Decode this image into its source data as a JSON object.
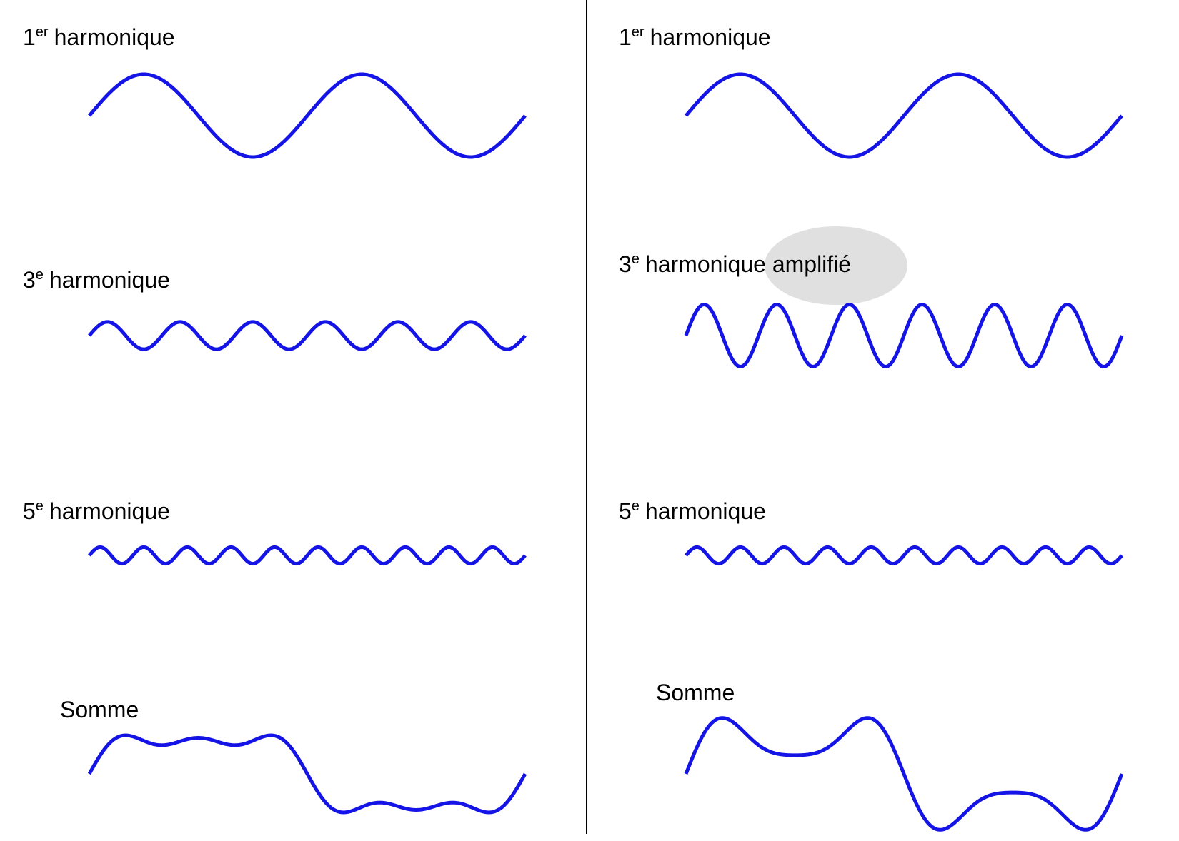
{
  "colors": {
    "wave": "#1414e6",
    "divider": "#000000",
    "highlight": "#e0e0e0",
    "text": "#000000"
  },
  "left": {
    "h1": {
      "number": "1",
      "suffix": "er",
      "word": "harmonique"
    },
    "h3": {
      "number": "3",
      "suffix": "e",
      "word": "harmonique"
    },
    "h5": {
      "number": "5",
      "suffix": "e",
      "word": "harmonique"
    },
    "sum": {
      "label": "Somme"
    }
  },
  "right": {
    "h1": {
      "number": "1",
      "suffix": "er",
      "word": "harmonique"
    },
    "h3": {
      "number": "3",
      "suffix": "e",
      "word": "harmonique amplifié"
    },
    "h5": {
      "number": "5",
      "suffix": "e",
      "word": "harmonique"
    },
    "sum": {
      "label": "Somme"
    }
  },
  "waves": {
    "harmonic_1": {
      "cycles": 2,
      "amplitude": 1.0
    },
    "harmonic_3": {
      "cycles": 6,
      "amplitude": 0.33
    },
    "harmonic_3_amplified": {
      "cycles": 6,
      "amplitude": 0.75
    },
    "harmonic_5": {
      "cycles": 10,
      "amplitude": 0.2
    },
    "sum_left": {
      "components": [
        [
          1,
          1.0
        ],
        [
          3,
          0.33
        ],
        [
          5,
          0.2
        ]
      ]
    },
    "sum_right": {
      "components": [
        [
          1,
          1.0
        ],
        [
          3,
          0.75
        ],
        [
          5,
          0.2
        ]
      ]
    }
  }
}
